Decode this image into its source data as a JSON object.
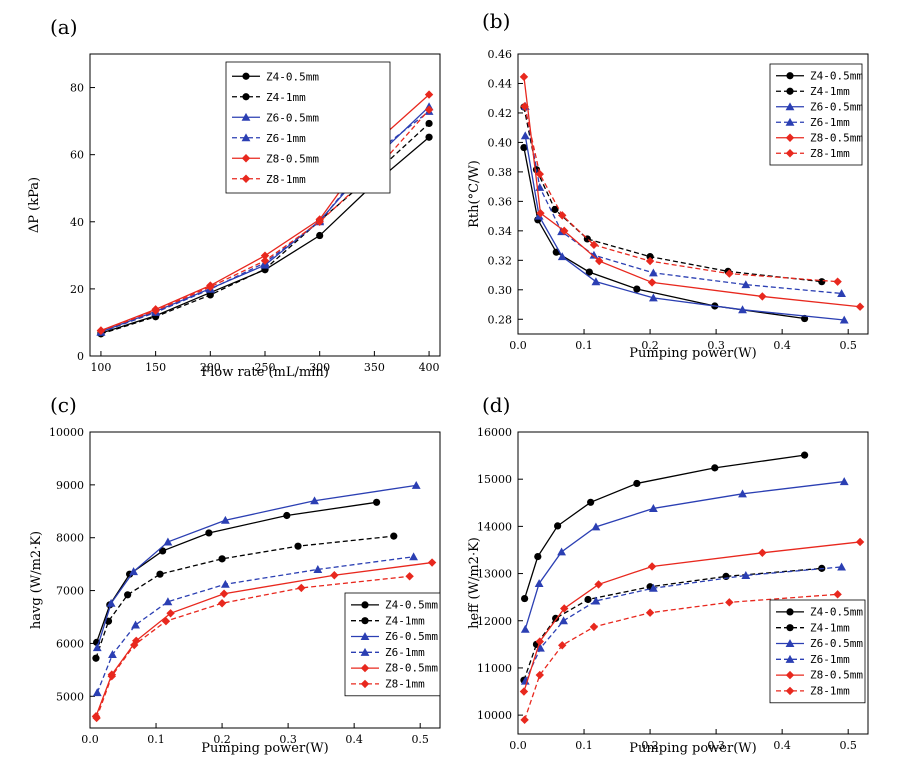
{
  "colors": {
    "black": "#000000",
    "blue": "#2b3fb3",
    "red": "#e8281e"
  },
  "chart_data": [
    {
      "type": "line",
      "panel_label": "(a)",
      "xlabel": "Flow rate (mL/min)",
      "ylabel": "ΔP (kPa)",
      "xlim": [
        90,
        410
      ],
      "ylim": [
        0,
        90
      ],
      "xticks": [
        100,
        150,
        200,
        250,
        300,
        350,
        400
      ],
      "yticks": [
        0,
        20,
        40,
        60,
        80
      ],
      "legend_position": "top-center",
      "series": [
        {
          "name": "Z4-0.5mm",
          "color": "black",
          "marker": "circle",
          "dash": false,
          "x": [
            100,
            150,
            200,
            250,
            300,
            350,
            400
          ],
          "y": [
            6.8,
            12.0,
            18.9,
            25.7,
            35.9,
            51.4,
            65.2
          ]
        },
        {
          "name": "Z4-1mm",
          "color": "black",
          "marker": "circle",
          "dash": true,
          "x": [
            100,
            150,
            200,
            250,
            300,
            350,
            400
          ],
          "y": [
            6.6,
            11.7,
            18.2,
            25.9,
            40.3,
            54.3,
            69.3
          ]
        },
        {
          "name": "Z6-0.5mm",
          "color": "blue",
          "marker": "triangle",
          "dash": false,
          "x": [
            100,
            150,
            200,
            250,
            300,
            350,
            400
          ],
          "y": [
            7.2,
            13.3,
            20.1,
            27.1,
            40.3,
            58.8,
            74.3
          ]
        },
        {
          "name": "Z6-1mm",
          "color": "blue",
          "marker": "triangle",
          "dash": true,
          "x": [
            100,
            150,
            200,
            250,
            300,
            350,
            400
          ],
          "y": [
            7.1,
            13.0,
            19.9,
            27.8,
            40.0,
            60.3,
            72.9
          ]
        },
        {
          "name": "Z8-0.5mm",
          "color": "red",
          "marker": "diamond",
          "dash": false,
          "x": [
            100,
            150,
            200,
            250,
            300,
            350,
            400
          ],
          "y": [
            7.6,
            13.9,
            21.0,
            29.9,
            40.7,
            63.3,
            77.9
          ]
        },
        {
          "name": "Z8-1mm",
          "color": "red",
          "marker": "diamond",
          "dash": true,
          "x": [
            100,
            150,
            200,
            250,
            300,
            350,
            400
          ],
          "y": [
            7.5,
            13.5,
            20.6,
            28.4,
            40.0,
            55.0,
            73.4
          ]
        }
      ]
    },
    {
      "type": "line",
      "panel_label": "(b)",
      "xlabel": "Pumping power(W)",
      "ylabel": "Rth(°C/W)",
      "xlim": [
        0,
        0.53
      ],
      "ylim": [
        0.27,
        0.46
      ],
      "xticks": [
        0.0,
        0.1,
        0.2,
        0.3,
        0.4,
        0.5
      ],
      "yticks": [
        0.28,
        0.3,
        0.32,
        0.34,
        0.36,
        0.38,
        0.4,
        0.42,
        0.44,
        0.46
      ],
      "legend_position": "top-right",
      "series": [
        {
          "name": "Z4-0.5mm",
          "color": "black",
          "marker": "circle",
          "dash": false,
          "x": [
            0.009,
            0.03,
            0.058,
            0.108,
            0.18,
            0.298,
            0.434
          ],
          "y": [
            0.3965,
            0.3475,
            0.3255,
            0.312,
            0.3005,
            0.289,
            0.2805
          ]
        },
        {
          "name": "Z4-1mm",
          "color": "black",
          "marker": "circle",
          "dash": true,
          "x": [
            0.009,
            0.028,
            0.056,
            0.105,
            0.2,
            0.318,
            0.46
          ],
          "y": [
            0.424,
            0.3815,
            0.3545,
            0.3345,
            0.3225,
            0.3125,
            0.3055
          ]
        },
        {
          "name": "Z6-0.5mm",
          "color": "blue",
          "marker": "triangle",
          "dash": false,
          "x": [
            0.011,
            0.032,
            0.067,
            0.118,
            0.205,
            0.34,
            0.494
          ],
          "y": [
            0.4045,
            0.35,
            0.3225,
            0.3055,
            0.2945,
            0.2865,
            0.2795
          ]
        },
        {
          "name": "Z6-1mm",
          "color": "blue",
          "marker": "triangle",
          "dash": true,
          "x": [
            0.011,
            0.033,
            0.066,
            0.115,
            0.205,
            0.345,
            0.49
          ],
          "y": [
            0.4245,
            0.3695,
            0.3395,
            0.3235,
            0.3115,
            0.3035,
            0.2975
          ]
        },
        {
          "name": "Z8-0.5mm",
          "color": "red",
          "marker": "diamond",
          "dash": false,
          "x": [
            0.009,
            0.034,
            0.07,
            0.123,
            0.203,
            0.37,
            0.518
          ],
          "y": [
            0.4445,
            0.352,
            0.34,
            0.3195,
            0.305,
            0.2955,
            0.2885
          ]
        },
        {
          "name": "Z8-1mm",
          "color": "red",
          "marker": "diamond",
          "dash": true,
          "x": [
            0.01,
            0.033,
            0.067,
            0.115,
            0.2,
            0.32,
            0.484
          ],
          "y": [
            0.4245,
            0.3785,
            0.3505,
            0.3305,
            0.3195,
            0.311,
            0.3055
          ]
        }
      ]
    },
    {
      "type": "line",
      "panel_label": "(c)",
      "xlabel": "Pumping power(W)",
      "ylabel": "havg (W/m2·K)",
      "xlim": [
        0,
        0.53
      ],
      "ylim": [
        4400,
        10000
      ],
      "xticks": [
        0.0,
        0.1,
        0.2,
        0.3,
        0.4,
        0.5
      ],
      "yticks": [
        5000,
        6000,
        7000,
        8000,
        9000,
        10000
      ],
      "legend_position": "bottom-right",
      "series": [
        {
          "name": "Z4-0.5mm",
          "color": "black",
          "marker": "circle",
          "dash": false,
          "x": [
            0.01,
            0.03,
            0.06,
            0.11,
            0.18,
            0.298,
            0.434
          ],
          "y": [
            6020,
            6730,
            7310,
            7750,
            8090,
            8420,
            8670
          ]
        },
        {
          "name": "Z4-1mm",
          "color": "black",
          "marker": "circle",
          "dash": true,
          "x": [
            0.009,
            0.028,
            0.057,
            0.106,
            0.2,
            0.315,
            0.46
          ],
          "y": [
            5720,
            6420,
            6920,
            7310,
            7600,
            7840,
            8030
          ]
        },
        {
          "name": "Z6-0.5mm",
          "color": "blue",
          "marker": "triangle",
          "dash": false,
          "x": [
            0.011,
            0.032,
            0.066,
            0.118,
            0.205,
            0.34,
            0.494
          ],
          "y": [
            5920,
            6760,
            7360,
            7920,
            8330,
            8700,
            8990
          ]
        },
        {
          "name": "Z6-1mm",
          "color": "blue",
          "marker": "triangle",
          "dash": true,
          "x": [
            0.011,
            0.034,
            0.069,
            0.118,
            0.205,
            0.345,
            0.49
          ],
          "y": [
            5070,
            5790,
            6350,
            6790,
            7120,
            7400,
            7640
          ]
        },
        {
          "name": "Z8-0.5mm",
          "color": "red",
          "marker": "diamond",
          "dash": false,
          "x": [
            0.009,
            0.033,
            0.07,
            0.122,
            0.203,
            0.37,
            0.518
          ],
          "y": [
            4620,
            5410,
            6050,
            6570,
            6940,
            7290,
            7530
          ]
        },
        {
          "name": "Z8-1mm",
          "color": "red",
          "marker": "diamond",
          "dash": true,
          "x": [
            0.01,
            0.033,
            0.067,
            0.115,
            0.2,
            0.32,
            0.484
          ],
          "y": [
            4590,
            5380,
            5970,
            6420,
            6760,
            7050,
            7270
          ]
        }
      ]
    },
    {
      "type": "line",
      "panel_label": "(d)",
      "xlabel": "Pumping power(W)",
      "ylabel": "heff (W/m2·K)",
      "xlim": [
        0,
        0.53
      ],
      "ylim": [
        9600,
        16000
      ],
      "xticks": [
        0.0,
        0.1,
        0.2,
        0.3,
        0.4,
        0.5
      ],
      "yticks": [
        10000,
        11000,
        12000,
        13000,
        14000,
        15000,
        16000
      ],
      "legend_position": "bottom-right",
      "series": [
        {
          "name": "Z4-0.5mm",
          "color": "black",
          "marker": "circle",
          "dash": false,
          "x": [
            0.01,
            0.03,
            0.06,
            0.11,
            0.18,
            0.298,
            0.434
          ],
          "y": [
            12470,
            13360,
            14010,
            14510,
            14910,
            15240,
            15510
          ]
        },
        {
          "name": "Z4-1mm",
          "color": "black",
          "marker": "circle",
          "dash": true,
          "x": [
            0.009,
            0.028,
            0.057,
            0.106,
            0.2,
            0.315,
            0.46
          ],
          "y": [
            10740,
            11500,
            12050,
            12450,
            12720,
            12940,
            13110
          ]
        },
        {
          "name": "Z6-0.5mm",
          "color": "blue",
          "marker": "triangle",
          "dash": false,
          "x": [
            0.011,
            0.032,
            0.066,
            0.118,
            0.205,
            0.34,
            0.494
          ],
          "y": [
            11820,
            12790,
            13460,
            13990,
            14380,
            14690,
            14950
          ]
        },
        {
          "name": "Z6-1mm",
          "color": "blue",
          "marker": "triangle",
          "dash": true,
          "x": [
            0.011,
            0.034,
            0.069,
            0.118,
            0.205,
            0.345,
            0.49
          ],
          "y": [
            10720,
            11420,
            12000,
            12420,
            12690,
            12960,
            13140
          ]
        },
        {
          "name": "Z8-0.5mm",
          "color": "red",
          "marker": "diamond",
          "dash": false,
          "x": [
            0.009,
            0.033,
            0.07,
            0.122,
            0.203,
            0.37,
            0.518
          ],
          "y": [
            10500,
            11560,
            12260,
            12770,
            13150,
            13440,
            13670
          ]
        },
        {
          "name": "Z8-1mm",
          "color": "red",
          "marker": "diamond",
          "dash": true,
          "x": [
            0.01,
            0.033,
            0.067,
            0.115,
            0.2,
            0.32,
            0.484
          ],
          "y": [
            9900,
            10850,
            11480,
            11870,
            12170,
            12390,
            12560
          ]
        }
      ]
    }
  ]
}
